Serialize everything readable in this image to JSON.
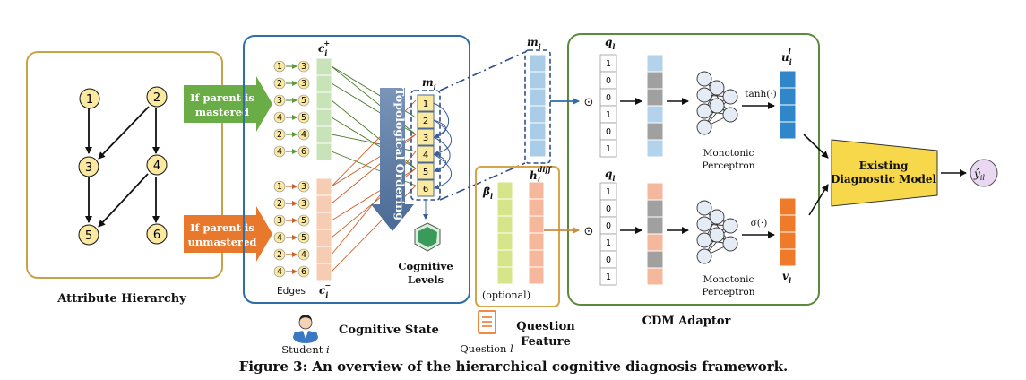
{
  "attribute_hierarchy": {
    "title": "Attribute Hierarchy",
    "nodes": [
      "1",
      "2",
      "3",
      "4",
      "5",
      "6"
    ]
  },
  "banners": {
    "mastered": [
      "If parent is",
      "mastered"
    ],
    "unmastered": [
      "If parent is",
      "unmastered"
    ]
  },
  "cognitive_state": {
    "title": "Cognitive State",
    "c_plus_label": "c",
    "c_plus_sub": "i",
    "c_plus_sup": "+",
    "c_minus_label": "c",
    "c_minus_sub": "i",
    "c_minus_sup": "−",
    "edges_label": "Edges",
    "edges_mastered": [
      [
        "1",
        "3"
      ],
      [
        "2",
        "3"
      ],
      [
        "3",
        "5"
      ],
      [
        "4",
        "5"
      ],
      [
        "2",
        "4"
      ],
      [
        "4",
        "6"
      ]
    ],
    "edges_unmastered": [
      [
        "1",
        "3"
      ],
      [
        "2",
        "3"
      ],
      [
        "3",
        "5"
      ],
      [
        "4",
        "5"
      ],
      [
        "2",
        "4"
      ],
      [
        "4",
        "6"
      ]
    ],
    "topo_label": "Topological Ordering",
    "m_label": "m",
    "m_sub": "i",
    "m_order": [
      "1",
      "2",
      "3",
      "4",
      "5",
      "6"
    ],
    "cognitive_levels": [
      "Cognitive",
      "Levels"
    ]
  },
  "student": {
    "label": "Student",
    "var": "i"
  },
  "question": {
    "label": "Question",
    "var": "l",
    "feature_title": [
      "Question",
      "Feature"
    ]
  },
  "question_feature": {
    "beta_label": "β",
    "beta_sub": "l",
    "h_label": "h",
    "h_sub": "l",
    "h_sup": "diff",
    "optional": "(optional)"
  },
  "cdm_adaptor": {
    "title": "CDM Adaptor",
    "m_label": "m",
    "m_sub": "i",
    "q_label": "q",
    "q_sub": "l",
    "q_vector": [
      "1",
      "0",
      "0",
      "1",
      "0",
      "1"
    ],
    "hadamard": "⊙",
    "perceptron": [
      "Monotonic",
      "Perceptron"
    ],
    "tanh": "tanh(·)",
    "sigma": "σ(·)",
    "u_label": "u",
    "u_sub": "i",
    "u_sup": "l",
    "v_label": "v",
    "v_sub": "l"
  },
  "existing_model": [
    "Existing",
    "Diagnostic Model"
  ],
  "output": {
    "label": "ŷ",
    "sub": "il"
  },
  "caption": "Figure 3: An overview of the hierarchical cognitive diagnosis framework.",
  "colors": {
    "gold_border": "#c8a24a",
    "blue_border": "#2f6ea8",
    "green_border": "#5a8a3a",
    "node_fill": "#fbe9a0",
    "green_arrow": "#6aac45",
    "orange_arrow": "#e8782c",
    "green_cell": "#c9e3b8",
    "peach_cell": "#f6cdb2",
    "blue_cell": "#a9cde9",
    "gray_cell": "#a0a0a0",
    "light_blue_cell": "#b3d2ec",
    "salmon_cell": "#f6b89c",
    "yellowgreen_cell": "#d6e58a",
    "u_cell": "#2f86c8",
    "v_cell": "#ef7a2a",
    "existing_fill": "#f7d84a",
    "output_fill": "#ead7f1"
  }
}
